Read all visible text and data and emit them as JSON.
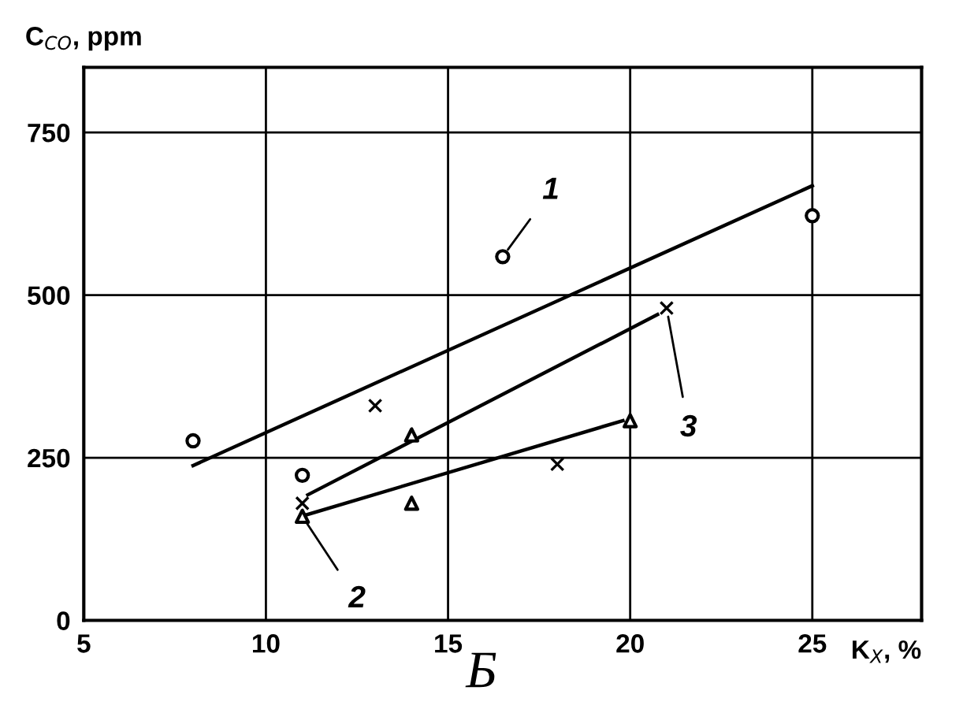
{
  "chart_data": {
    "type": "scatter",
    "xlabel": "K$_{X}$, %",
    "ylabel": "C$_{CO}$, ppm",
    "xlim": [
      5,
      28
    ],
    "ylim": [
      0,
      850
    ],
    "xticks": [
      5,
      10,
      15,
      20,
      25
    ],
    "yticks": [
      0,
      250,
      500,
      750
    ],
    "grid": true,
    "series": [
      {
        "marker": "circle",
        "color": "#000000",
        "x": [
          8,
          11,
          16.5,
          25
        ],
        "values": [
          276,
          223,
          559,
          622
        ]
      },
      {
        "marker": "triangle",
        "color": "#000000",
        "x": [
          11,
          14,
          14,
          20
        ],
        "values": [
          160,
          285,
          180,
          307
        ]
      },
      {
        "marker": "cross",
        "color": "#000000",
        "x": [
          11,
          13,
          18,
          21
        ],
        "values": [
          180,
          330,
          240,
          480
        ]
      },
      {
        "type": "line",
        "marker": "none",
        "color": "#000000",
        "x": [
          8,
          25
        ],
        "values": [
          238,
          668
        ]
      },
      {
        "type": "line",
        "marker": "none",
        "color": "#000000",
        "x": [
          11.1,
          19.8
        ],
        "values": [
          162,
          307
        ]
      },
      {
        "type": "line",
        "marker": "none",
        "color": "#000000",
        "x": [
          11.15,
          20.75
        ],
        "values": [
          193,
          470
        ]
      }
    ],
    "annotations": [
      {
        "text": "1",
        "x": 16.5,
        "y": 559
      },
      {
        "text": "2",
        "x": 11,
        "y": 160
      },
      {
        "text": "3",
        "x": 21,
        "y": 480
      },
      "Б"
    ]
  }
}
